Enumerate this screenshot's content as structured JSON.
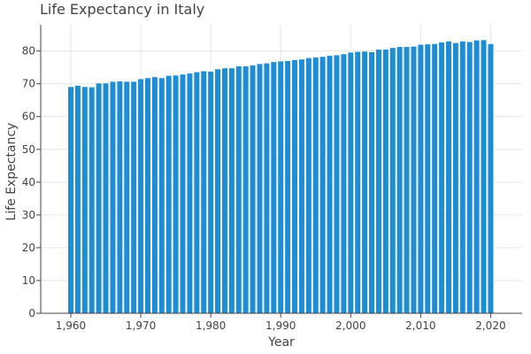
{
  "chart_data": {
    "type": "bar",
    "title": "Life Expectancy in Italy",
    "xlabel": "Year",
    "ylabel": "Life Expectancy",
    "x": [
      1960,
      1961,
      1962,
      1963,
      1964,
      1965,
      1966,
      1967,
      1968,
      1969,
      1970,
      1971,
      1972,
      1973,
      1974,
      1975,
      1976,
      1977,
      1978,
      1979,
      1980,
      1981,
      1982,
      1983,
      1984,
      1985,
      1986,
      1987,
      1988,
      1989,
      1990,
      1991,
      1992,
      1993,
      1994,
      1995,
      1996,
      1997,
      1998,
      1999,
      2000,
      2001,
      2002,
      2003,
      2004,
      2005,
      2006,
      2007,
      2008,
      2009,
      2010,
      2011,
      2012,
      2013,
      2014,
      2015,
      2016,
      2017,
      2018,
      2019,
      2020
    ],
    "values": [
      69.1,
      69.5,
      69.1,
      69.0,
      70.2,
      70.2,
      70.7,
      70.8,
      70.7,
      70.7,
      71.5,
      71.8,
      72.1,
      71.8,
      72.5,
      72.6,
      72.9,
      73.2,
      73.6,
      73.9,
      73.8,
      74.5,
      74.8,
      74.8,
      75.4,
      75.4,
      75.7,
      76.1,
      76.3,
      76.7,
      76.9,
      77.0,
      77.3,
      77.5,
      77.9,
      78.1,
      78.3,
      78.6,
      78.8,
      79.1,
      79.6,
      79.8,
      79.9,
      79.7,
      80.5,
      80.5,
      81.0,
      81.3,
      81.3,
      81.4,
      82.0,
      82.1,
      82.2,
      82.7,
      83.0,
      82.5,
      83.0,
      82.8,
      83.3,
      83.4,
      82.2
    ],
    "xlim": [
      1955.7,
      2024.5
    ],
    "ylim": [
      0,
      88
    ],
    "xticks": [
      1960,
      1970,
      1980,
      1990,
      2000,
      2010,
      2020
    ],
    "xtick_labels": [
      "1,960",
      "1,970",
      "1,980",
      "1,990",
      "2,000",
      "2,010",
      "2,020"
    ],
    "yticks": [
      0,
      10,
      20,
      30,
      40,
      50,
      60,
      70,
      80
    ],
    "grid": true,
    "bar_color": "#1f8dd6",
    "bar_edge_color": "#ffffff"
  }
}
